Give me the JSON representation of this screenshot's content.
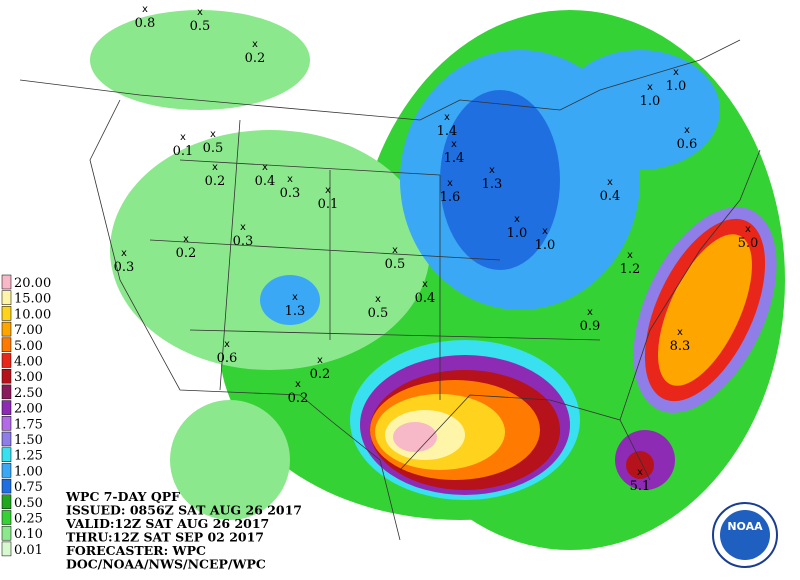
{
  "header": {
    "lines": [
      "WPC 7-DAY QPF",
      "ISSUED: 0856Z SAT AUG 26 2017",
      "VALID:12Z SAT AUG 26 2017",
      "THRU:12Z SAT SEP 02 2017",
      "FORECASTER: WPC",
      "DOC/NOAA/NWS/NCEP/WPC"
    ]
  },
  "legend": [
    {
      "label": "20.00",
      "color": "#f7b8c8"
    },
    {
      "label": "15.00",
      "color": "#fff5a8"
    },
    {
      "label": "10.00",
      "color": "#ffd21e"
    },
    {
      "label": "7.00",
      "color": "#ffa500"
    },
    {
      "label": "5.00",
      "color": "#ff7a00"
    },
    {
      "label": "4.00",
      "color": "#e8261a"
    },
    {
      "label": "3.00",
      "color": "#b5121b"
    },
    {
      "label": "2.50",
      "color": "#8b1a5c"
    },
    {
      "label": "2.00",
      "color": "#8e2bb5"
    },
    {
      "label": "1.75",
      "color": "#b36ae6"
    },
    {
      "label": "1.50",
      "color": "#8f7de8"
    },
    {
      "label": "1.25",
      "color": "#38e0f0"
    },
    {
      "label": "1.00",
      "color": "#3aa8f5"
    },
    {
      "label": "0.75",
      "color": "#1f6fe0"
    },
    {
      "label": "0.50",
      "color": "#1fa81f"
    },
    {
      "label": "0.25",
      "color": "#35d235"
    },
    {
      "label": "0.10",
      "color": "#8ce88c"
    },
    {
      "label": "0.01",
      "color": "#d8f8d0"
    }
  ],
  "points": [
    "0.8",
    "0.5",
    "0.2",
    "1.0",
    "1.0",
    "1.4",
    "0.6",
    "0.1",
    "0.5",
    "1.4",
    "1.3",
    "0.2",
    "0.4",
    "0.3",
    "0.1",
    "1.6",
    "0.4",
    "1.0",
    "1.0",
    "0.3",
    "0.2",
    "5.0",
    "1.2",
    "0.3",
    "0.5",
    "0.4",
    "1.3",
    "0.5",
    "0.9",
    "8.3",
    "0.6",
    "0.2",
    "0.2",
    "5.1"
  ],
  "logo": "NOAA"
}
